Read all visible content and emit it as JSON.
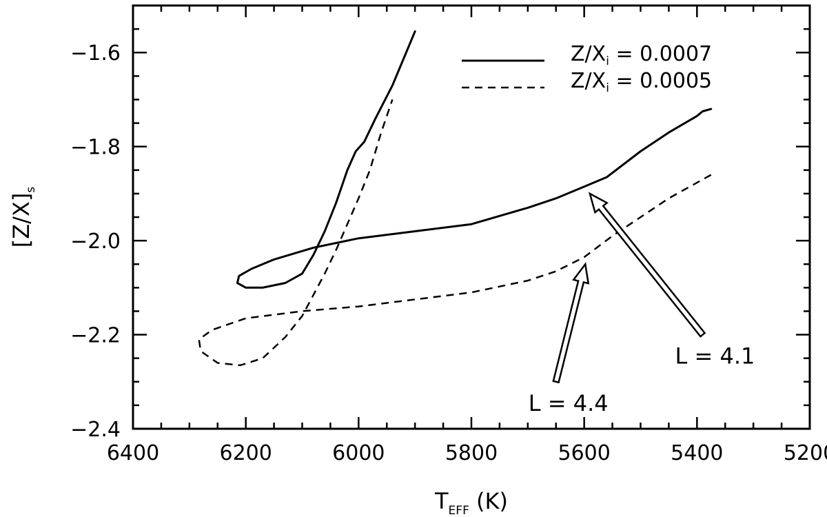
{
  "chart_data": {
    "type": "line",
    "xlabel": {
      "main": "T",
      "sub": "EFF",
      "rest": " (K)"
    },
    "ylabel": {
      "main": "[Z/X]",
      "sub": "s"
    },
    "xlim": [
      6400,
      5200
    ],
    "ylim": [
      -2.4,
      -1.5
    ],
    "x_major_ticks": [
      6400,
      6200,
      6000,
      5800,
      5600,
      5400,
      5200
    ],
    "x_tick_labels": [
      "6400",
      "6200",
      "6000",
      "5800",
      "5600",
      "5400",
      "5200"
    ],
    "x_minor_step": 50,
    "y_major_ticks": [
      -2.4,
      -2.2,
      -2.0,
      -1.8,
      -1.6
    ],
    "y_tick_labels": [
      "−2.4",
      "−2.2",
      "−2.0",
      "−1.8",
      "−1.6"
    ],
    "y_minor_step": 0.05,
    "grid": false,
    "legend": {
      "position": "top-right",
      "entries": [
        {
          "prefix": "Z/X",
          "sub": "i",
          "suffix": " = 0.0007",
          "style": "solid"
        },
        {
          "prefix": "Z/X",
          "sub": "i",
          "suffix": " = 0.0005",
          "style": "dashed"
        }
      ]
    },
    "series": [
      {
        "style": "solid",
        "color": "#000000",
        "points": [
          [
            5375,
            -1.72
          ],
          [
            5390,
            -1.725
          ],
          [
            5400,
            -1.735
          ],
          [
            5450,
            -1.77
          ],
          [
            5500,
            -1.81
          ],
          [
            5560,
            -1.865
          ],
          [
            5600,
            -1.885
          ],
          [
            5650,
            -1.91
          ],
          [
            5700,
            -1.93
          ],
          [
            5800,
            -1.965
          ],
          [
            5900,
            -1.98
          ],
          [
            6000,
            -1.995
          ],
          [
            6080,
            -2.015
          ],
          [
            6150,
            -2.04
          ],
          [
            6190,
            -2.06
          ],
          [
            6212,
            -2.075
          ],
          [
            6215,
            -2.09
          ],
          [
            6200,
            -2.1
          ],
          [
            6170,
            -2.1
          ],
          [
            6130,
            -2.09
          ],
          [
            6100,
            -2.07
          ],
          [
            6080,
            -2.03
          ],
          [
            6060,
            -1.98
          ],
          [
            6040,
            -1.92
          ],
          [
            6020,
            -1.85
          ],
          [
            6005,
            -1.81
          ],
          [
            5990,
            -1.79
          ],
          [
            5970,
            -1.74
          ],
          [
            5940,
            -1.67
          ],
          [
            5900,
            -1.555
          ]
        ]
      },
      {
        "style": "dashed",
        "color": "#000000",
        "points": [
          [
            5375,
            -1.86
          ],
          [
            5450,
            -1.91
          ],
          [
            5500,
            -1.95
          ],
          [
            5550,
            -1.99
          ],
          [
            5600,
            -2.035
          ],
          [
            5650,
            -2.065
          ],
          [
            5700,
            -2.085
          ],
          [
            5800,
            -2.11
          ],
          [
            5900,
            -2.125
          ],
          [
            6000,
            -2.14
          ],
          [
            6100,
            -2.15
          ],
          [
            6200,
            -2.165
          ],
          [
            6260,
            -2.19
          ],
          [
            6283,
            -2.21
          ],
          [
            6280,
            -2.235
          ],
          [
            6250,
            -2.26
          ],
          [
            6210,
            -2.265
          ],
          [
            6170,
            -2.25
          ],
          [
            6130,
            -2.205
          ],
          [
            6100,
            -2.16
          ],
          [
            6080,
            -2.115
          ],
          [
            6060,
            -2.07
          ],
          [
            6040,
            -2.02
          ],
          [
            6020,
            -1.965
          ],
          [
            6000,
            -1.91
          ],
          [
            5980,
            -1.85
          ],
          [
            5960,
            -1.77
          ],
          [
            5940,
            -1.7
          ]
        ]
      }
    ],
    "annotations": [
      {
        "text": "L = 4.1",
        "tail": [
          5390,
          -2.2
        ],
        "head": [
          5590,
          -1.9
        ]
      },
      {
        "text": "L = 4.4",
        "tail": [
          5650,
          -2.3
        ],
        "head": [
          5598,
          -2.05
        ]
      }
    ]
  }
}
